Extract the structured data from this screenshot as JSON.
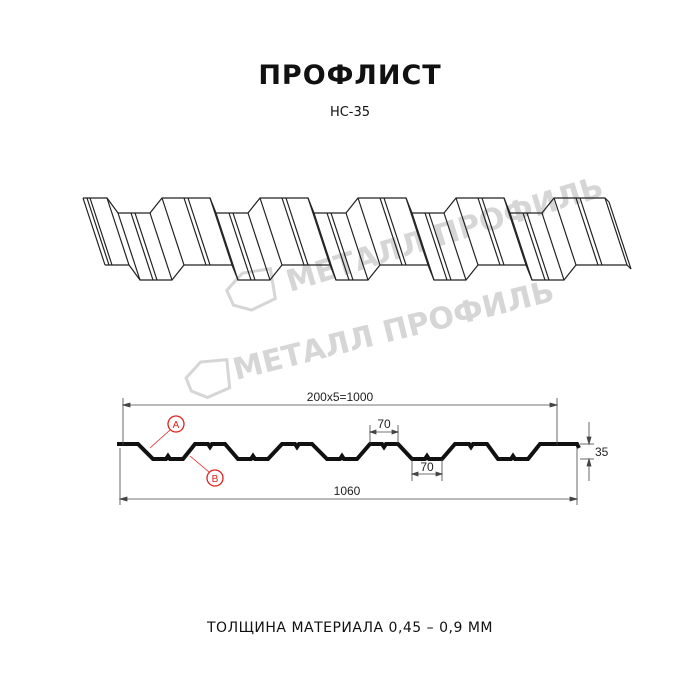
{
  "header": {
    "title": "ПРОФЛИСТ",
    "subtitle": "НС-35"
  },
  "watermark": {
    "text": "МЕТАЛЛ ПРОФИЛЬ",
    "color": "#d6d6d6"
  },
  "section": {
    "dimensions": {
      "pitch": "200x5=1000",
      "total_width": "1060",
      "height": "35",
      "top_flat": "70",
      "bottom_flat": "70"
    },
    "markers": {
      "a": "A",
      "b": "B"
    },
    "marker_color": "#e02020"
  },
  "footer": {
    "thickness": "ТОЛЩИНА МАТЕРИАЛА 0,45 – 0,9 ММ"
  }
}
